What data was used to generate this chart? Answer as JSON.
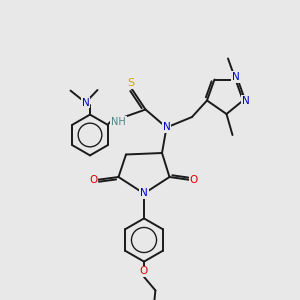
{
  "bg_color": "#e8e8e8",
  "bond_color": "#1a1a1a",
  "bond_width": 1.4,
  "figsize": [
    3.0,
    3.0
  ],
  "dpi": 100,
  "atom_colors": {
    "N": "#0000cc",
    "O": "#dd0000",
    "S": "#ccaa00",
    "C": "#1a1a1a",
    "H": "#4a8888"
  },
  "xlim": [
    0,
    10
  ],
  "ylim": [
    0,
    10
  ]
}
